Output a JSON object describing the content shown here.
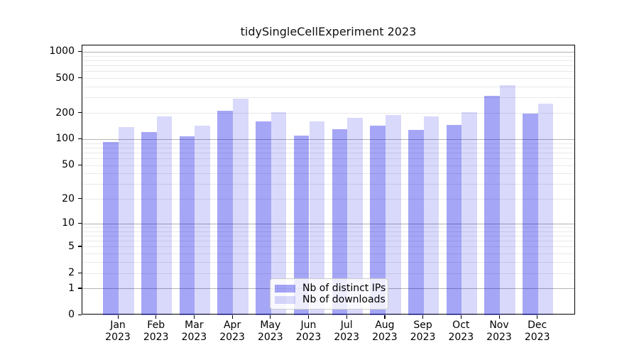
{
  "title": "tidySingleCellExperiment 2023",
  "chart_data": {
    "type": "bar",
    "title": "tidySingleCellExperiment 2023",
    "categories": [
      "Jan",
      "Feb",
      "Mar",
      "Apr",
      "May",
      "Jun",
      "Jul",
      "Aug",
      "Sep",
      "Oct",
      "Nov",
      "Dec"
    ],
    "year": "2023",
    "series": [
      {
        "name": "Nb of distinct IPs",
        "color": "rgba(0,0,230,0.35)",
        "values": [
          93,
          122,
          109,
          215,
          160,
          110,
          132,
          145,
          128,
          147,
          315,
          200
        ]
      },
      {
        "name": "Nb of downloads",
        "color": "rgba(0,0,230,0.15)",
        "values": [
          140,
          183,
          144,
          295,
          205,
          160,
          178,
          190,
          185,
          205,
          420,
          260
        ]
      }
    ],
    "xlabel": "",
    "ylabel": "",
    "yscale": "log1p",
    "yticks": [
      0,
      1,
      2,
      5,
      10,
      20,
      50,
      100,
      200,
      500,
      1000
    ],
    "ylim": [
      0,
      1200
    ],
    "grid": true,
    "legend_position": "lower center",
    "colors": {
      "major_grid": "#b3b3b3",
      "minor_grid": "#e9e9e9",
      "spine": "#000000",
      "background": "#ffffff"
    }
  }
}
